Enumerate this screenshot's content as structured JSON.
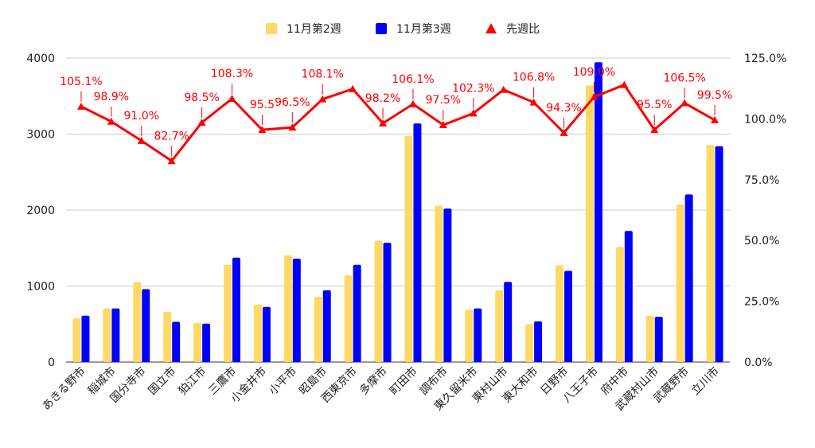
{
  "chart_data": {
    "type": "bar",
    "title": "",
    "categories": [
      "あきる野市",
      "稲城市",
      "国分寺市",
      "国立市",
      "狛江市",
      "三鷹市",
      "小金井市",
      "小平市",
      "昭島市",
      "西東京市",
      "多摩市",
      "町田市",
      "調布市",
      "東久留米市",
      "東村山市",
      "東大和市",
      "日野市",
      "八王子市",
      "府中市",
      "武蔵村山市",
      "武蔵野市",
      "立川市"
    ],
    "series": [
      {
        "name": "11月第2週",
        "type": "bar",
        "axis": "left",
        "color": "#ffd966",
        "values": [
          580,
          705,
          1055,
          660,
          515,
          1280,
          755,
          1405,
          860,
          1140,
          1595,
          2975,
          2060,
          690,
          945,
          500,
          1275,
          3640,
          1515,
          610,
          2075,
          2855
        ]
      },
      {
        "name": "11月第3週",
        "type": "bar",
        "axis": "left",
        "color": "#0000ff",
        "values": [
          610,
          705,
          960,
          530,
          505,
          1375,
          725,
          1360,
          945,
          1280,
          1570,
          3140,
          2020,
          705,
          1055,
          535,
          1200,
          3945,
          1725,
          595,
          2205,
          2840
        ]
      },
      {
        "name": "先週比",
        "type": "line",
        "axis": "right",
        "color": "#ff0000",
        "values": [
          105.1,
          98.9,
          91.0,
          82.7,
          98.5,
          108.3,
          95.5,
          96.5,
          108.1,
          112.3,
          98.2,
          106.1,
          97.5,
          102.3,
          112.0,
          106.8,
          94.3,
          109.0,
          114.0,
          95.5,
          106.5,
          99.5
        ],
        "labels": [
          "105.1%",
          "98.9%",
          "91.0%",
          "82.7%",
          "98.5%",
          "108.3%",
          "95.5",
          "96.5%",
          "108.1%",
          "",
          "98.2%",
          "106.1%",
          "97.5%",
          "102.3%",
          "",
          "106.8%",
          "94.3%",
          "109.0%",
          "",
          "95.5%",
          "106.5%",
          "99.5%"
        ]
      }
    ],
    "y_left": {
      "min": 0,
      "max": 4000,
      "ticks": [
        "0",
        "1000",
        "2000",
        "3000",
        "4000"
      ]
    },
    "y_right": {
      "min": 0,
      "max": 125,
      "ticks": [
        "0.0%",
        "25.0%",
        "50.0%",
        "75.0%",
        "100.0%",
        "125.0%"
      ]
    },
    "grid": true,
    "legend_position": "top-center"
  }
}
